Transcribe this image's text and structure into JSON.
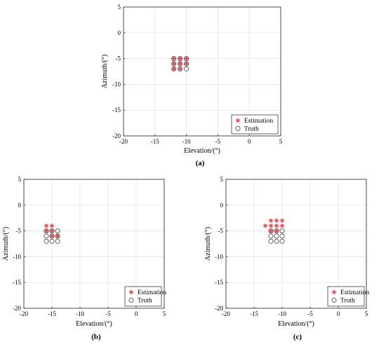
{
  "chart_data": [
    {
      "id": "a",
      "type": "scatter",
      "caption": "(a)",
      "xlabel": "Elevation/(°)",
      "ylabel": "Azimuth/(°)",
      "xlim": [
        -20,
        5
      ],
      "ylim": [
        -20,
        5
      ],
      "xticks": [
        -20,
        -15,
        -10,
        -5,
        0,
        5
      ],
      "yticks": [
        5,
        0,
        -5,
        -10,
        -15,
        -20
      ],
      "grid": true,
      "legend_position": "bottom-right",
      "colors": {
        "estimation": "#e8343f",
        "truth": "#404040"
      },
      "series": [
        {
          "name": "Estimation",
          "marker": "asterisk",
          "x": [
            -12,
            -11,
            -10,
            -12,
            -11,
            -10,
            -12,
            -11
          ],
          "y": [
            -5,
            -5,
            -5,
            -6,
            -6,
            -6,
            -7,
            -7
          ]
        },
        {
          "name": "Truth",
          "marker": "circle",
          "x": [
            -12,
            -11,
            -10,
            -12,
            -11,
            -10,
            -12,
            -11,
            -10
          ],
          "y": [
            -5,
            -5,
            -5,
            -6,
            -6,
            -6,
            -7,
            -7,
            -7
          ]
        }
      ]
    },
    {
      "id": "b",
      "type": "scatter",
      "caption": "(b)",
      "xlabel": "Elevation/(°)",
      "ylabel": "Azimuth/(°)",
      "xlim": [
        -20,
        5
      ],
      "ylim": [
        -20,
        5
      ],
      "xticks": [
        -20,
        -15,
        -10,
        -5,
        0,
        5
      ],
      "yticks": [
        5,
        0,
        -5,
        -10,
        -15,
        -20
      ],
      "grid": true,
      "legend_position": "bottom-right",
      "colors": {
        "estimation": "#e8343f",
        "truth": "#404040"
      },
      "series": [
        {
          "name": "Estimation",
          "marker": "asterisk",
          "x": [
            -16,
            -15,
            -16,
            -15,
            -15,
            -14
          ],
          "y": [
            -4,
            -4,
            -5,
            -5,
            -6,
            -6
          ]
        },
        {
          "name": "Truth",
          "marker": "circle",
          "x": [
            -16,
            -15,
            -14,
            -16,
            -15,
            -14,
            -16,
            -15,
            -14
          ],
          "y": [
            -5,
            -5,
            -5,
            -6,
            -6,
            -6,
            -7,
            -7,
            -7
          ]
        }
      ]
    },
    {
      "id": "c",
      "type": "scatter",
      "caption": "(c)",
      "xlabel": "Elevation/(°)",
      "ylabel": "Azimuth/(°)",
      "xlim": [
        -20,
        5
      ],
      "ylim": [
        -20,
        5
      ],
      "xticks": [
        -20,
        -15,
        -10,
        -5,
        0,
        5
      ],
      "yticks": [
        5,
        0,
        -5,
        -10,
        -15,
        -20
      ],
      "grid": true,
      "legend_position": "bottom-right",
      "colors": {
        "estimation": "#e8343f",
        "truth": "#404040"
      },
      "series": [
        {
          "name": "Estimation",
          "marker": "asterisk",
          "x": [
            -12,
            -11,
            -10,
            -13,
            -12,
            -11,
            -10,
            -12,
            -11
          ],
          "y": [
            -3,
            -3,
            -3,
            -4,
            -4,
            -4,
            -4,
            -5,
            -5
          ]
        },
        {
          "name": "Truth",
          "marker": "circle",
          "x": [
            -12,
            -11,
            -10,
            -12,
            -11,
            -10,
            -12,
            -11,
            -10
          ],
          "y": [
            -5,
            -5,
            -5,
            -6,
            -6,
            -6,
            -7,
            -7,
            -7
          ]
        }
      ]
    }
  ]
}
